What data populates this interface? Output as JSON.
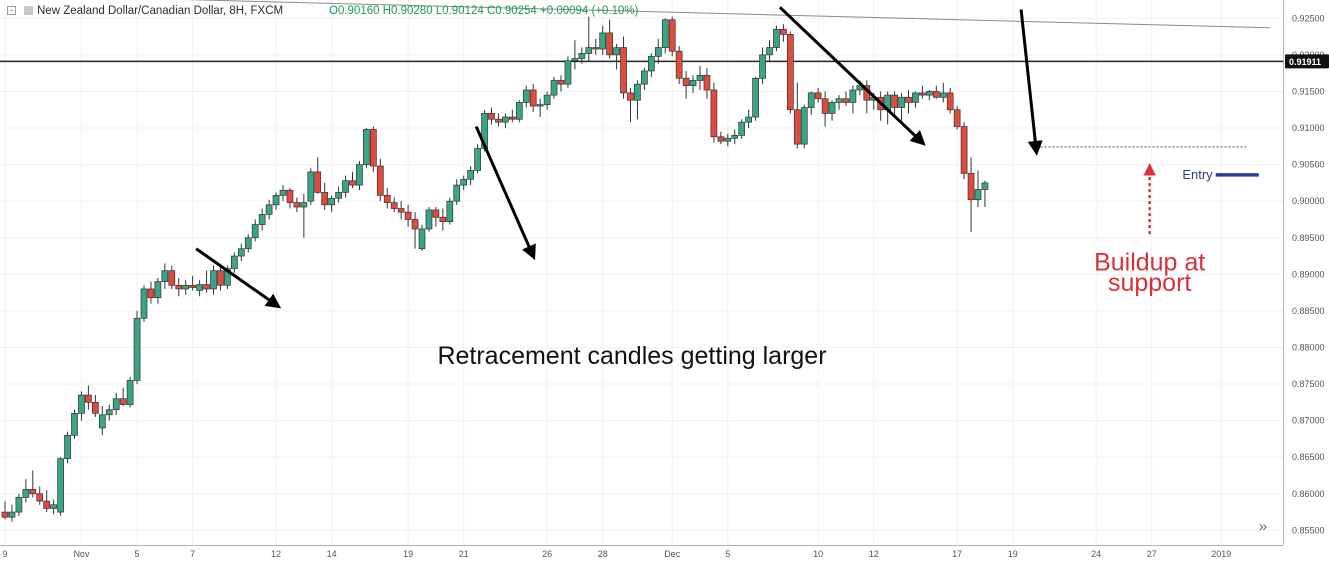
{
  "header": {
    "symbol_icon": "collapse-square-icon",
    "title": "New Zealand Dollar/Canadian Dollar, 8H, FXCM",
    "ohlc": "O0.90160 H0.90280 L0.90124 C0.90254 +0.00094 (+0.10%)"
  },
  "annotations": {
    "main_text": "Retracement candles getting larger",
    "buildup_line1": "Buildup at",
    "buildup_line2": "support",
    "entry": "Entry",
    "current_price_label": "0.91911"
  },
  "controls": {
    "scroll_right_icon": "double-chevron-right-icon",
    "scroll_right_glyph": "»"
  },
  "colors": {
    "up": "#3aa584",
    "down": "#e04b3d",
    "annotation_red": "#d9303a",
    "entry_blue": "#2b3c9e",
    "entry_text": "#2b3a8c"
  },
  "chart_data": {
    "type": "candlestick",
    "ylim": [
      0.853,
      0.9275
    ],
    "y_ticks": [
      0.855,
      0.86,
      0.865,
      0.87,
      0.875,
      0.88,
      0.885,
      0.89,
      0.895,
      0.9,
      0.905,
      0.91,
      0.915,
      0.92,
      0.925
    ],
    "y_tick_labels": [
      "0.85500",
      "0.86000",
      "0.86500",
      "0.87000",
      "0.87500",
      "0.88000",
      "0.88500",
      "0.89000",
      "0.89500",
      "0.90000",
      "0.90500",
      "0.91000",
      "0.91500",
      "0.92000",
      "0.92500"
    ],
    "x_tick_labels": [
      "9",
      "Nov",
      "5",
      "7",
      "12",
      "14",
      "19",
      "21",
      "26",
      "28",
      "Dec",
      "5",
      "10",
      "12",
      "17",
      "19",
      "24",
      "27",
      "2019"
    ],
    "x_tick_bar_index": [
      0,
      11,
      19,
      27,
      39,
      47,
      58,
      66,
      78,
      86,
      96,
      104,
      117,
      125,
      137,
      145,
      157,
      165,
      175
    ],
    "horizontal_level": 0.91911,
    "resistance_trendline": [
      [
        0,
        0.9282
      ],
      [
        182,
        0.9237
      ]
    ],
    "support_level": 0.9074,
    "entry_level": 0.9036,
    "candles": [
      {
        "o": 0.8575,
        "h": 0.859,
        "l": 0.8565,
        "c": 0.8568
      },
      {
        "o": 0.8568,
        "h": 0.8585,
        "l": 0.8562,
        "c": 0.8575
      },
      {
        "o": 0.8575,
        "h": 0.86,
        "l": 0.857,
        "c": 0.8595
      },
      {
        "o": 0.8595,
        "h": 0.862,
        "l": 0.8588,
        "c": 0.8606
      },
      {
        "o": 0.8606,
        "h": 0.8632,
        "l": 0.8595,
        "c": 0.86
      },
      {
        "o": 0.86,
        "h": 0.861,
        "l": 0.8585,
        "c": 0.859
      },
      {
        "o": 0.859,
        "h": 0.8605,
        "l": 0.8575,
        "c": 0.858
      },
      {
        "o": 0.858,
        "h": 0.8592,
        "l": 0.8572,
        "c": 0.8585
      },
      {
        "o": 0.8575,
        "h": 0.865,
        "l": 0.857,
        "c": 0.8648
      },
      {
        "o": 0.8648,
        "h": 0.8685,
        "l": 0.8642,
        "c": 0.868
      },
      {
        "o": 0.868,
        "h": 0.8715,
        "l": 0.8675,
        "c": 0.871
      },
      {
        "o": 0.871,
        "h": 0.874,
        "l": 0.87,
        "c": 0.8735
      },
      {
        "o": 0.8735,
        "h": 0.8748,
        "l": 0.8715,
        "c": 0.8725
      },
      {
        "o": 0.8725,
        "h": 0.8735,
        "l": 0.8705,
        "c": 0.871
      },
      {
        "o": 0.869,
        "h": 0.872,
        "l": 0.868,
        "c": 0.8708
      },
      {
        "o": 0.8708,
        "h": 0.8722,
        "l": 0.87,
        "c": 0.8715
      },
      {
        "o": 0.8715,
        "h": 0.8738,
        "l": 0.8708,
        "c": 0.873
      },
      {
        "o": 0.873,
        "h": 0.8745,
        "l": 0.872,
        "c": 0.8722
      },
      {
        "o": 0.8722,
        "h": 0.876,
        "l": 0.8718,
        "c": 0.8755
      },
      {
        "o": 0.8755,
        "h": 0.885,
        "l": 0.875,
        "c": 0.884
      },
      {
        "o": 0.884,
        "h": 0.8885,
        "l": 0.8835,
        "c": 0.888
      },
      {
        "o": 0.888,
        "h": 0.889,
        "l": 0.886,
        "c": 0.8868
      },
      {
        "o": 0.8868,
        "h": 0.8895,
        "l": 0.886,
        "c": 0.889
      },
      {
        "o": 0.889,
        "h": 0.8915,
        "l": 0.888,
        "c": 0.8905
      },
      {
        "o": 0.8905,
        "h": 0.8912,
        "l": 0.888,
        "c": 0.8885
      },
      {
        "o": 0.8885,
        "h": 0.8895,
        "l": 0.887,
        "c": 0.888
      },
      {
        "o": 0.888,
        "h": 0.8892,
        "l": 0.8872,
        "c": 0.8885
      },
      {
        "o": 0.8885,
        "h": 0.8898,
        "l": 0.8878,
        "c": 0.8882
      },
      {
        "o": 0.8878,
        "h": 0.8892,
        "l": 0.887,
        "c": 0.8886
      },
      {
        "o": 0.8886,
        "h": 0.8905,
        "l": 0.8875,
        "c": 0.888
      },
      {
        "o": 0.888,
        "h": 0.8912,
        "l": 0.8872,
        "c": 0.8905
      },
      {
        "o": 0.8905,
        "h": 0.891,
        "l": 0.8878,
        "c": 0.8885
      },
      {
        "o": 0.8885,
        "h": 0.8912,
        "l": 0.888,
        "c": 0.8908
      },
      {
        "o": 0.8908,
        "h": 0.893,
        "l": 0.8902,
        "c": 0.8925
      },
      {
        "o": 0.8925,
        "h": 0.8942,
        "l": 0.8918,
        "c": 0.8935
      },
      {
        "o": 0.8935,
        "h": 0.8955,
        "l": 0.893,
        "c": 0.895
      },
      {
        "o": 0.895,
        "h": 0.8975,
        "l": 0.8945,
        "c": 0.8968
      },
      {
        "o": 0.8968,
        "h": 0.899,
        "l": 0.896,
        "c": 0.8982
      },
      {
        "o": 0.8982,
        "h": 0.9002,
        "l": 0.8975,
        "c": 0.8995
      },
      {
        "o": 0.8995,
        "h": 0.9012,
        "l": 0.8988,
        "c": 0.9008
      },
      {
        "o": 0.9008,
        "h": 0.9022,
        "l": 0.9,
        "c": 0.9015
      },
      {
        "o": 0.9015,
        "h": 0.9018,
        "l": 0.899,
        "c": 0.8998
      },
      {
        "o": 0.8998,
        "h": 0.9005,
        "l": 0.8985,
        "c": 0.8992
      },
      {
        "o": 0.8992,
        "h": 0.901,
        "l": 0.895,
        "c": 0.8998
      },
      {
        "o": 0.9,
        "h": 0.9045,
        "l": 0.8995,
        "c": 0.904
      },
      {
        "o": 0.904,
        "h": 0.906,
        "l": 0.901,
        "c": 0.9012
      },
      {
        "o": 0.9012,
        "h": 0.9025,
        "l": 0.8988,
        "c": 0.8995
      },
      {
        "o": 0.8995,
        "h": 0.9008,
        "l": 0.8985,
        "c": 0.9004
      },
      {
        "o": 0.9004,
        "h": 0.902,
        "l": 0.8998,
        "c": 0.9012
      },
      {
        "o": 0.9012,
        "h": 0.9035,
        "l": 0.9005,
        "c": 0.9028
      },
      {
        "o": 0.9028,
        "h": 0.904,
        "l": 0.9018,
        "c": 0.9022
      },
      {
        "o": 0.9022,
        "h": 0.9055,
        "l": 0.9015,
        "c": 0.905
      },
      {
        "o": 0.905,
        "h": 0.91,
        "l": 0.9045,
        "c": 0.9098
      },
      {
        "o": 0.9098,
        "h": 0.9102,
        "l": 0.904,
        "c": 0.9048
      },
      {
        "o": 0.9048,
        "h": 0.9058,
        "l": 0.9,
        "c": 0.9008
      },
      {
        "o": 0.9008,
        "h": 0.9018,
        "l": 0.899,
        "c": 0.8998
      },
      {
        "o": 0.8998,
        "h": 0.9005,
        "l": 0.8985,
        "c": 0.899
      },
      {
        "o": 0.899,
        "h": 0.9,
        "l": 0.8975,
        "c": 0.8985
      },
      {
        "o": 0.8985,
        "h": 0.8995,
        "l": 0.8965,
        "c": 0.8975
      },
      {
        "o": 0.8975,
        "h": 0.8985,
        "l": 0.8935,
        "c": 0.8962
      },
      {
        "o": 0.8935,
        "h": 0.8968,
        "l": 0.8932,
        "c": 0.8962
      },
      {
        "o": 0.8962,
        "h": 0.8992,
        "l": 0.8958,
        "c": 0.8988
      },
      {
        "o": 0.8988,
        "h": 0.8992,
        "l": 0.8965,
        "c": 0.8978
      },
      {
        "o": 0.8978,
        "h": 0.899,
        "l": 0.896,
        "c": 0.8972
      },
      {
        "o": 0.8972,
        "h": 0.9005,
        "l": 0.8968,
        "c": 0.9
      },
      {
        "o": 0.9,
        "h": 0.903,
        "l": 0.8995,
        "c": 0.9022
      },
      {
        "o": 0.9022,
        "h": 0.9035,
        "l": 0.9015,
        "c": 0.903
      },
      {
        "o": 0.903,
        "h": 0.9048,
        "l": 0.9022,
        "c": 0.9042
      },
      {
        "o": 0.9042,
        "h": 0.9078,
        "l": 0.9038,
        "c": 0.9072
      },
      {
        "o": 0.9072,
        "h": 0.9125,
        "l": 0.9068,
        "c": 0.912
      },
      {
        "o": 0.912,
        "h": 0.9128,
        "l": 0.9105,
        "c": 0.9112
      },
      {
        "o": 0.9112,
        "h": 0.912,
        "l": 0.9102,
        "c": 0.9108
      },
      {
        "o": 0.9108,
        "h": 0.912,
        "l": 0.91,
        "c": 0.9115
      },
      {
        "o": 0.9115,
        "h": 0.9125,
        "l": 0.9108,
        "c": 0.9112
      },
      {
        "o": 0.9112,
        "h": 0.9138,
        "l": 0.9108,
        "c": 0.9135
      },
      {
        "o": 0.9135,
        "h": 0.9158,
        "l": 0.9128,
        "c": 0.9152
      },
      {
        "o": 0.9152,
        "h": 0.916,
        "l": 0.9122,
        "c": 0.913
      },
      {
        "o": 0.913,
        "h": 0.914,
        "l": 0.9115,
        "c": 0.9132
      },
      {
        "o": 0.9132,
        "h": 0.915,
        "l": 0.9125,
        "c": 0.9145
      },
      {
        "o": 0.9145,
        "h": 0.917,
        "l": 0.914,
        "c": 0.9165
      },
      {
        "o": 0.9165,
        "h": 0.9172,
        "l": 0.915,
        "c": 0.916
      },
      {
        "o": 0.916,
        "h": 0.9198,
        "l": 0.9155,
        "c": 0.9192
      },
      {
        "o": 0.9192,
        "h": 0.922,
        "l": 0.918,
        "c": 0.9195
      },
      {
        "o": 0.9195,
        "h": 0.921,
        "l": 0.9188,
        "c": 0.9202
      },
      {
        "o": 0.9202,
        "h": 0.9252,
        "l": 0.919,
        "c": 0.921
      },
      {
        "o": 0.921,
        "h": 0.9222,
        "l": 0.92,
        "c": 0.9208
      },
      {
        "o": 0.9208,
        "h": 0.924,
        "l": 0.92,
        "c": 0.923
      },
      {
        "o": 0.923,
        "h": 0.9248,
        "l": 0.9195,
        "c": 0.92
      },
      {
        "o": 0.92,
        "h": 0.9215,
        "l": 0.918,
        "c": 0.921
      },
      {
        "o": 0.921,
        "h": 0.9225,
        "l": 0.914,
        "c": 0.9148
      },
      {
        "o": 0.9148,
        "h": 0.9155,
        "l": 0.9108,
        "c": 0.9138
      },
      {
        "o": 0.9138,
        "h": 0.9165,
        "l": 0.9112,
        "c": 0.916
      },
      {
        "o": 0.916,
        "h": 0.9182,
        "l": 0.9152,
        "c": 0.9178
      },
      {
        "o": 0.9178,
        "h": 0.9202,
        "l": 0.917,
        "c": 0.9198
      },
      {
        "o": 0.9198,
        "h": 0.9222,
        "l": 0.9188,
        "c": 0.921
      },
      {
        "o": 0.921,
        "h": 0.925,
        "l": 0.9202,
        "c": 0.9248
      },
      {
        "o": 0.9248,
        "h": 0.9252,
        "l": 0.9198,
        "c": 0.9205
      },
      {
        "o": 0.9205,
        "h": 0.9212,
        "l": 0.916,
        "c": 0.9168
      },
      {
        "o": 0.9168,
        "h": 0.9178,
        "l": 0.914,
        "c": 0.9158
      },
      {
        "o": 0.9158,
        "h": 0.9172,
        "l": 0.9148,
        "c": 0.9165
      },
      {
        "o": 0.9165,
        "h": 0.9185,
        "l": 0.9152,
        "c": 0.9172
      },
      {
        "o": 0.9172,
        "h": 0.9182,
        "l": 0.914,
        "c": 0.9152
      },
      {
        "o": 0.9152,
        "h": 0.9162,
        "l": 0.908,
        "c": 0.9088
      },
      {
        "o": 0.9088,
        "h": 0.9095,
        "l": 0.9078,
        "c": 0.9082
      },
      {
        "o": 0.9082,
        "h": 0.9092,
        "l": 0.9075,
        "c": 0.9086
      },
      {
        "o": 0.9086,
        "h": 0.9098,
        "l": 0.9078,
        "c": 0.909
      },
      {
        "o": 0.909,
        "h": 0.9112,
        "l": 0.9085,
        "c": 0.9108
      },
      {
        "o": 0.9108,
        "h": 0.9125,
        "l": 0.91,
        "c": 0.9115
      },
      {
        "o": 0.9115,
        "h": 0.917,
        "l": 0.911,
        "c": 0.9168
      },
      {
        "o": 0.9168,
        "h": 0.921,
        "l": 0.916,
        "c": 0.92
      },
      {
        "o": 0.92,
        "h": 0.922,
        "l": 0.9192,
        "c": 0.921
      },
      {
        "o": 0.921,
        "h": 0.924,
        "l": 0.9205,
        "c": 0.9235
      },
      {
        "o": 0.9235,
        "h": 0.9242,
        "l": 0.9218,
        "c": 0.9228
      },
      {
        "o": 0.9228,
        "h": 0.9232,
        "l": 0.912,
        "c": 0.9125
      },
      {
        "o": 0.9125,
        "h": 0.9162,
        "l": 0.9072,
        "c": 0.9078
      },
      {
        "o": 0.9078,
        "h": 0.9132,
        "l": 0.9072,
        "c": 0.9128
      },
      {
        "o": 0.9128,
        "h": 0.915,
        "l": 0.9118,
        "c": 0.9148
      },
      {
        "o": 0.9148,
        "h": 0.9155,
        "l": 0.9135,
        "c": 0.914
      },
      {
        "o": 0.914,
        "h": 0.915,
        "l": 0.9102,
        "c": 0.912
      },
      {
        "o": 0.912,
        "h": 0.9138,
        "l": 0.911,
        "c": 0.9135
      },
      {
        "o": 0.9135,
        "h": 0.9145,
        "l": 0.9125,
        "c": 0.914
      },
      {
        "o": 0.914,
        "h": 0.915,
        "l": 0.913,
        "c": 0.9135
      },
      {
        "o": 0.9135,
        "h": 0.9158,
        "l": 0.912,
        "c": 0.9152
      },
      {
        "o": 0.9152,
        "h": 0.9165,
        "l": 0.9145,
        "c": 0.9158
      },
      {
        "o": 0.9158,
        "h": 0.9165,
        "l": 0.912,
        "c": 0.9138
      },
      {
        "o": 0.9138,
        "h": 0.9148,
        "l": 0.9125,
        "c": 0.9142
      },
      {
        "o": 0.9142,
        "h": 0.915,
        "l": 0.911,
        "c": 0.9125
      },
      {
        "o": 0.9125,
        "h": 0.915,
        "l": 0.9105,
        "c": 0.9145
      },
      {
        "o": 0.9145,
        "h": 0.915,
        "l": 0.9115,
        "c": 0.9128
      },
      {
        "o": 0.9128,
        "h": 0.9148,
        "l": 0.911,
        "c": 0.9142
      },
      {
        "o": 0.9142,
        "h": 0.9152,
        "l": 0.912,
        "c": 0.9135
      },
      {
        "o": 0.9135,
        "h": 0.915,
        "l": 0.9128,
        "c": 0.9148
      },
      {
        "o": 0.9148,
        "h": 0.9158,
        "l": 0.914,
        "c": 0.9145
      },
      {
        "o": 0.9145,
        "h": 0.9152,
        "l": 0.9138,
        "c": 0.915
      },
      {
        "o": 0.915,
        "h": 0.9158,
        "l": 0.914,
        "c": 0.9142
      },
      {
        "o": 0.9142,
        "h": 0.9162,
        "l": 0.9135,
        "c": 0.9148
      },
      {
        "o": 0.9148,
        "h": 0.9155,
        "l": 0.912,
        "c": 0.9125
      },
      {
        "o": 0.9125,
        "h": 0.913,
        "l": 0.9098,
        "c": 0.9102
      },
      {
        "o": 0.9102,
        "h": 0.9108,
        "l": 0.903,
        "c": 0.9038
      },
      {
        "o": 0.9038,
        "h": 0.906,
        "l": 0.8958,
        "c": 0.9002
      },
      {
        "o": 0.9002,
        "h": 0.9042,
        "l": 0.8992,
        "c": 0.9016
      },
      {
        "o": 0.9016,
        "h": 0.9028,
        "l": 0.8992,
        "c": 0.9025
      }
    ]
  }
}
